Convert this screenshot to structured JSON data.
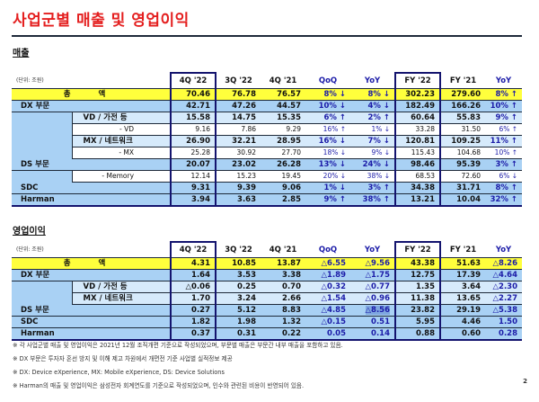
{
  "title": "사업군별 매출 및 영업이익",
  "columns": [
    "4Q '22",
    "3Q '22",
    "4Q '21",
    "QoQ",
    "YoY",
    "FY '22",
    "FY '21",
    "YoY"
  ],
  "unit": "(단위: 조원)",
  "revenue": {
    "heading": "매출",
    "rows": [
      {
        "type": "total",
        "label": "총 액",
        "values": [
          "70.46",
          "76.78",
          "76.57",
          "8% ↓",
          "8% ↓",
          "302.23",
          "279.60",
          "8% ↑"
        ]
      },
      {
        "type": "main",
        "label": "DX 부문",
        "values": [
          "42.71",
          "47.26",
          "44.57",
          "10% ↓",
          "4% ↓",
          "182.49",
          "166.26",
          "10% ↑"
        ]
      },
      {
        "type": "sub",
        "label": "VD / 가전 등",
        "values": [
          "15.58",
          "14.75",
          "15.35",
          "6% ↑",
          "2% ↑",
          "60.64",
          "55.83",
          "9% ↑"
        ]
      },
      {
        "type": "detail",
        "label": "- VD",
        "values": [
          "9.16",
          "7.86",
          "9.29",
          "16% ↑",
          "1% ↓",
          "33.28",
          "31.50",
          "6% ↑"
        ]
      },
      {
        "type": "sub",
        "label": "MX / 네트워크",
        "values": [
          "26.90",
          "32.21",
          "28.95",
          "16% ↓",
          "7% ↓",
          "120.81",
          "109.25",
          "11% ↑"
        ]
      },
      {
        "type": "detail",
        "label": "- MX",
        "values": [
          "25.28",
          "30.92",
          "27.70",
          "18% ↓",
          "9% ↓",
          "115.43",
          "104.68",
          "10% ↑"
        ]
      },
      {
        "type": "main",
        "label": "DS 부문",
        "values": [
          "20.07",
          "23.02",
          "26.28",
          "13% ↓",
          "24% ↓",
          "98.46",
          "95.39",
          "3% ↑"
        ]
      },
      {
        "type": "detail",
        "label": "- Memory",
        "values": [
          "12.14",
          "15.23",
          "19.45",
          "20% ↓",
          "38% ↓",
          "68.53",
          "72.60",
          "6% ↓"
        ]
      },
      {
        "type": "main",
        "label": "SDC",
        "values": [
          "9.31",
          "9.39",
          "9.06",
          "1% ↓",
          "3% ↑",
          "34.38",
          "31.71",
          "8% ↑"
        ]
      },
      {
        "type": "main",
        "label": "Harman",
        "values": [
          "3.94",
          "3.63",
          "2.85",
          "9% ↑",
          "38% ↑",
          "13.21",
          "10.04",
          "32% ↑"
        ]
      }
    ]
  },
  "operating_profit": {
    "heading": "영업이익",
    "rows": [
      {
        "type": "total",
        "label": "총 액",
        "values": [
          "4.31",
          "10.85",
          "13.87",
          "△6.55",
          "△9.56",
          "43.38",
          "51.63",
          "△8.26"
        ]
      },
      {
        "type": "main",
        "label": "DX 부문",
        "values": [
          "1.64",
          "3.53",
          "3.38",
          "△1.89",
          "△1.75",
          "12.75",
          "17.39",
          "△4.64"
        ]
      },
      {
        "type": "sub",
        "label": "VD / 가전 등",
        "values": [
          "△0.06",
          "0.25",
          "0.70",
          "△0.32",
          "△0.77",
          "1.35",
          "3.64",
          "△2.30"
        ]
      },
      {
        "type": "sub",
        "label": "MX / 네트워크",
        "values": [
          "1.70",
          "3.24",
          "2.66",
          "△1.54",
          "△0.96",
          "11.38",
          "13.65",
          "△2.27"
        ]
      },
      {
        "type": "main",
        "label": "DS 부문",
        "values": [
          "0.27",
          "5.12",
          "8.83",
          "△4.85",
          "△8.56",
          "23.82",
          "29.19",
          "△5.38"
        ],
        "selected_index": 4
      },
      {
        "type": "main",
        "label": "SDC",
        "values": [
          "1.82",
          "1.98",
          "1.32",
          "△0.15",
          "0.51",
          "5.95",
          "4.46",
          "1.50"
        ]
      },
      {
        "type": "main",
        "label": "Harman",
        "values": [
          "0.37",
          "0.31",
          "0.22",
          "0.05",
          "0.14",
          "0.88",
          "0.60",
          "0.28"
        ]
      }
    ]
  },
  "notes": [
    "※ 각 사업군별 매출 및 영업이익은 2021년 12월 조직개편 기준으로 작성되었으며, 부문별 매출은 부문간 내부 매출을 포함하고 있음.",
    "※ DX 부문은 투자자 혼선 방지 및 이해 제고 차원에서 개편전 기준 사업별 실적정보 제공",
    "※ DX: Device eXperience, MX: Mobile eXperience, DS: Device Solutions",
    "※ Harman의 매출 및 영업이익은 삼성전자 회계연도를 기준으로 작성되었으며, 인수와 관련된 비용이 반영되어 있음."
  ],
  "page_number": "2",
  "colors": {
    "title": "#e41e1e",
    "total_row": "#ffff3c",
    "main_row": "#a9d1f4",
    "sub_row": "#d6eafb",
    "change_text": "#1c1ca8",
    "highlight_box": "#14146e"
  }
}
